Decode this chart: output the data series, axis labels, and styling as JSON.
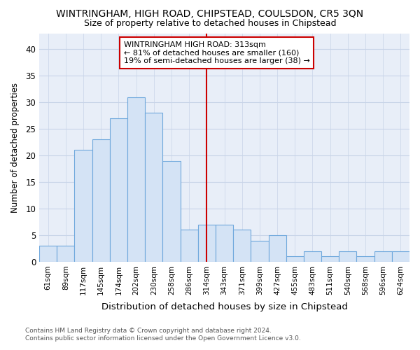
{
  "title": "WINTRINGHAM, HIGH ROAD, CHIPSTEAD, COULSDON, CR5 3QN",
  "subtitle": "Size of property relative to detached houses in Chipstead",
  "xlabel": "Distribution of detached houses by size in Chipstead",
  "ylabel": "Number of detached properties",
  "categories": [
    "61sqm",
    "89sqm",
    "117sqm",
    "145sqm",
    "174sqm",
    "202sqm",
    "230sqm",
    "258sqm",
    "286sqm",
    "314sqm",
    "343sqm",
    "371sqm",
    "399sqm",
    "427sqm",
    "455sqm",
    "483sqm",
    "511sqm",
    "540sqm",
    "568sqm",
    "596sqm",
    "624sqm"
  ],
  "values": [
    3,
    3,
    21,
    23,
    27,
    31,
    28,
    19,
    6,
    7,
    7,
    6,
    4,
    5,
    1,
    2,
    1,
    2,
    1,
    2,
    2
  ],
  "bar_color": "#d4e3f5",
  "bar_edge_color": "#6fa8dc",
  "highlight_color": "#cc0000",
  "ref_line_index": 9,
  "annotation_text": "WINTRINGHAM HIGH ROAD: 313sqm\n← 81% of detached houses are smaller (160)\n19% of semi-detached houses are larger (38) →",
  "annotation_box_color": "#cc0000",
  "ylim": [
    0,
    43
  ],
  "yticks": [
    0,
    5,
    10,
    15,
    20,
    25,
    30,
    35,
    40
  ],
  "title_fontsize": 10,
  "subtitle_fontsize": 9,
  "footer_line1": "Contains HM Land Registry data © Crown copyright and database right 2024.",
  "footer_line2": "Contains public sector information licensed under the Open Government Licence v3.0.",
  "background_color": "#ffffff",
  "plot_bg_color": "#e8eef8",
  "grid_color": "#c8d4e8"
}
